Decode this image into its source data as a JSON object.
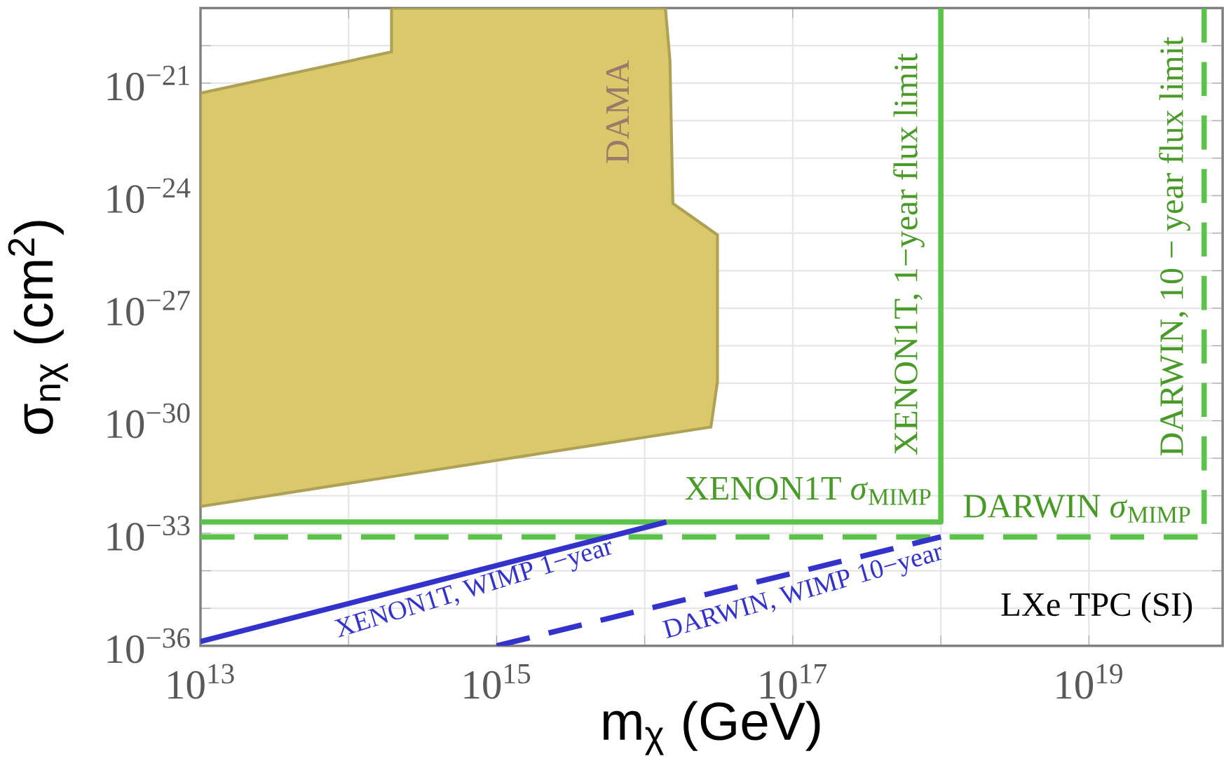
{
  "chart_data": {
    "type": "line",
    "xlabel": "m$_{χ}$  (GeV)",
    "ylabel": "σ$_{nχ}$  (cm$^{2}$)",
    "log": "xy",
    "grid": true,
    "xlim": [
      10000000000000.0,
      8e+19
    ],
    "ylim": [
      1e-36,
      1e-19
    ],
    "xticks": [
      {
        "value": 10000000000000.0,
        "label": "10$^{13}$"
      },
      {
        "value": 100000000000000.0,
        "label": null
      },
      {
        "value": 1000000000000000.0,
        "label": "10$^{15}$"
      },
      {
        "value": 1e+16,
        "label": null
      },
      {
        "value": 1e+17,
        "label": "10$^{17}$"
      },
      {
        "value": 1e+18,
        "label": null
      },
      {
        "value": 1e+19,
        "label": "10$^{19}$"
      }
    ],
    "yticks": [
      {
        "value": 1e-36,
        "label": "10$^{−36}$"
      },
      {
        "value": 1e-35,
        "label": null
      },
      {
        "value": 1e-34,
        "label": null
      },
      {
        "value": 1e-33,
        "label": "10$^{−33}$"
      },
      {
        "value": 1e-32,
        "label": null
      },
      {
        "value": 1e-31,
        "label": null
      },
      {
        "value": 1e-30,
        "label": "10$^{−30}$"
      },
      {
        "value": 1e-29,
        "label": null
      },
      {
        "value": 1e-28,
        "label": null
      },
      {
        "value": 1e-27,
        "label": "10$^{−27}$"
      },
      {
        "value": 1e-26,
        "label": null
      },
      {
        "value": 1e-25,
        "label": null
      },
      {
        "value": 1e-24,
        "label": "10$^{−24}$"
      },
      {
        "value": 1e-23,
        "label": null
      },
      {
        "value": 1e-22,
        "label": null
      },
      {
        "value": 1e-21,
        "label": "10$^{−21}$"
      },
      {
        "value": 1e-20,
        "label": null
      },
      {
        "value": 1e-19,
        "label": null
      }
    ],
    "series": [
      {
        "type": "area",
        "color": "#d9c96b",
        "x": [
          10000000000000.0,
          195000000000000.0,
          195000000000000.0,
          1.38e+16,
          1.48e+16,
          1.55e+16,
          3.1e+16,
          3.1e+16,
          2.8e+16,
          10000000000000.0
        ],
        "values": [
          5.4e-22,
          6.8e-21,
          1e-19,
          1e-19,
          4.2e-21,
          6.2e-25,
          9e-26,
          1.1e-29,
          6.8e-31,
          5.2e-33
        ]
      },
      {
        "line_style": "solid",
        "color": "#5cc34a",
        "x": [
          10000000000000.0,
          1e+18,
          1e+18
        ],
        "values": [
          2e-33,
          2e-33,
          1e-19
        ]
      },
      {
        "line_style": "dashed",
        "color": "#5cc34a",
        "x": [
          10000000000000.0,
          6e+19,
          6e+19
        ],
        "values": [
          8e-34,
          8e-34,
          1e-19
        ]
      },
      {
        "line_style": "solid",
        "color": "#3333cc",
        "x": [
          10000000000000.0,
          1.4e+16
        ],
        "values": [
          1.3e-36,
          2e-33
        ]
      },
      {
        "line_style": "dashed",
        "color": "#3333cc",
        "x": [
          1000000000000000.0,
          1e+18
        ],
        "values": [
          1e-36,
          8e-34
        ]
      }
    ],
    "annotations": [
      "DAMA",
      "XENON1T, 1−year flux limit",
      "DARWIN,  10 − year flux  limit",
      "XENON1T *σ*$_{MIMP}$",
      "DARWIN *σ*$_{MIMP}$",
      "XENON1T,  WIMP 1−year",
      "DARWIN, WIMP 10−year",
      "LXe TPC (SI)"
    ]
  }
}
